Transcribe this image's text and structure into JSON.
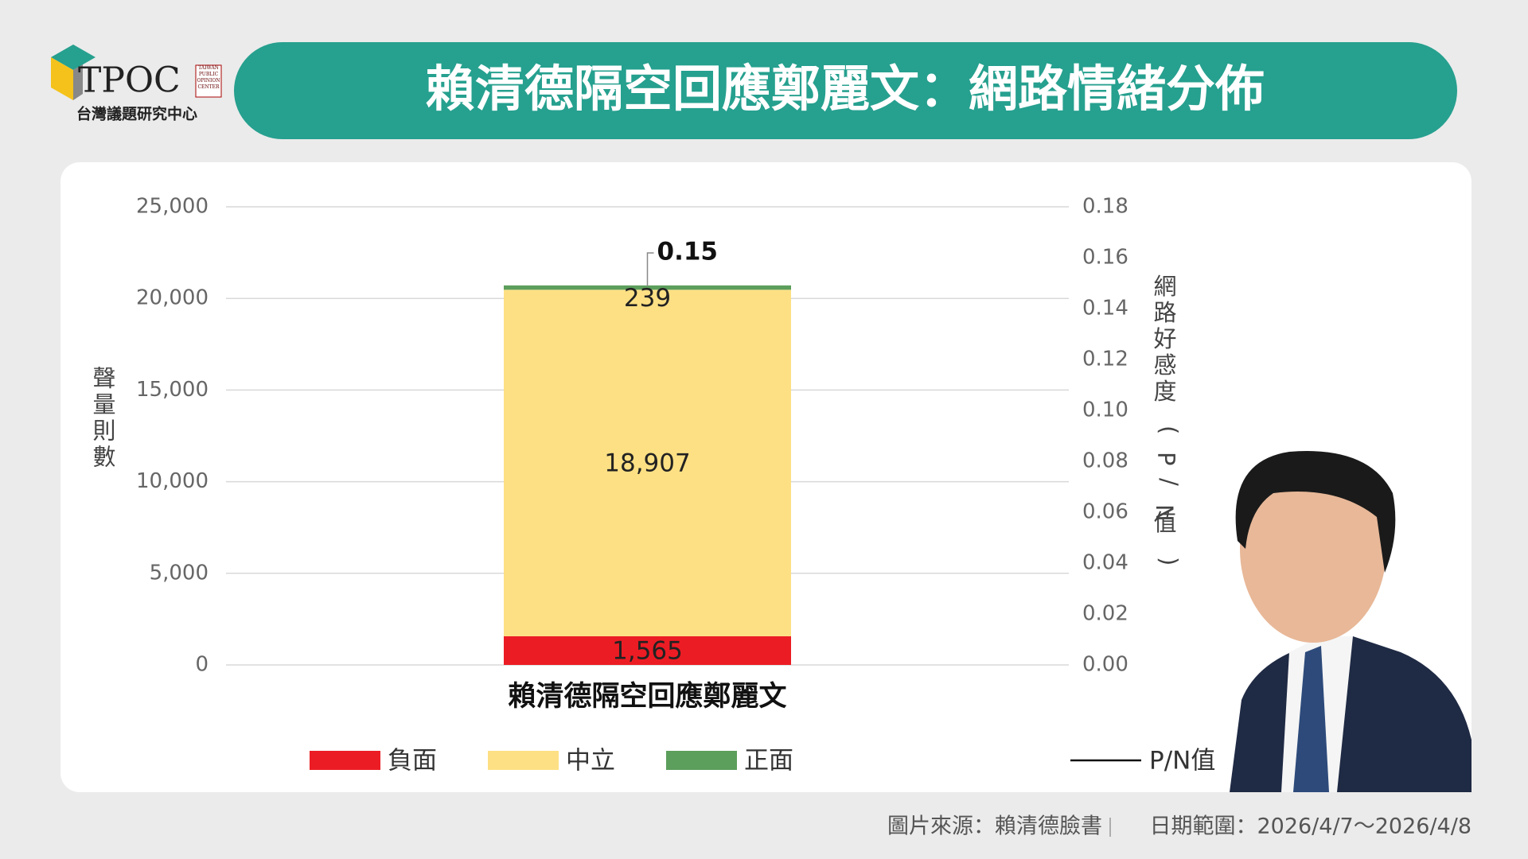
{
  "logo": {
    "name": "TPOC",
    "tagline": "TAIWAN PUBLIC OPINION CENTER",
    "subtitle": "台灣議題研究中心"
  },
  "chart_data": {
    "type": "bar",
    "stacked": true,
    "title": "賴清德隔空回應鄭麗文：網路情緒分佈",
    "categories": [
      "賴清德隔空回應鄭麗文"
    ],
    "series": [
      {
        "name": "負面",
        "color": "#ec1c24",
        "values": [
          1565
        ],
        "value_labels": [
          "1,565"
        ]
      },
      {
        "name": "中立",
        "color": "#fde084",
        "values": [
          18907
        ],
        "value_labels": [
          "18,907"
        ]
      },
      {
        "name": "正面",
        "color": "#5c9e5c",
        "values": [
          239
        ]
      },
      {
        "name": "P/N值",
        "type": "line",
        "axis": "y2",
        "color": "#111111",
        "values": [
          0.15
        ]
      }
    ],
    "ylabel": "聲量則數",
    "y2label": "網路好感度(P/N值)",
    "ylim": [
      0,
      25000
    ],
    "yticks": [
      0,
      {
        "value": 5000,
        "label": "5,000"
      },
      {
        "value": 10000,
        "label": "10,000"
      },
      {
        "value": 15000,
        "label": "15,000"
      },
      {
        "value": 20000,
        "label": "20,000"
      },
      {
        "value": 25000,
        "label": "25,000"
      }
    ],
    "y2lim": [
      0,
      0.18
    ],
    "y2ticks": [
      {
        "value": 0,
        "label": "0.00"
      },
      0.02,
      0.04,
      0.06,
      0.08,
      {
        "value": 0.1,
        "label": "0.10"
      },
      0.12,
      0.14,
      0.16,
      0.18
    ],
    "grid": true,
    "legend": "bottom"
  },
  "footer": {
    "source": "圖片來源：賴清德臉書",
    "date_range": "日期範圍：2026/4/7～2026/4/8"
  }
}
